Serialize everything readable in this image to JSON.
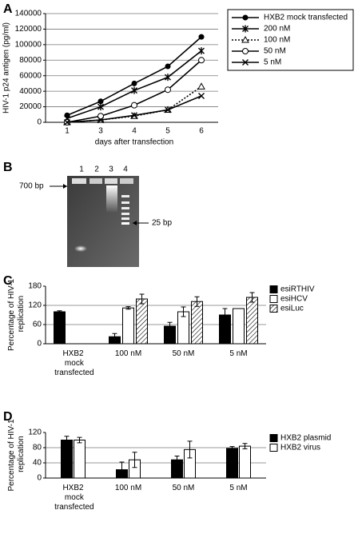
{
  "chart_data": [
    {
      "type": "line",
      "panel": "A",
      "ylabel": "HIV-1 p24 antigen (pg/ml)",
      "xlabel": "days after transfection",
      "categories": [
        "1",
        "3",
        "4",
        "5",
        "6"
      ],
      "ylim": [
        0,
        140000
      ],
      "yticks": [
        0,
        20000,
        40000,
        60000,
        80000,
        100000,
        120000,
        140000
      ],
      "grid": true,
      "series": [
        {
          "name": "HXB2 mock transfected",
          "color": "#000000",
          "marker": "filled-circle",
          "dashed": false,
          "values": [
            9000,
            27000,
            50000,
            72000,
            110000
          ]
        },
        {
          "name": "200 nM",
          "color": "#000000",
          "marker": "asterisk",
          "dashed": false,
          "values": [
            5000,
            20000,
            41000,
            58000,
            92000
          ]
        },
        {
          "name": "100 nM",
          "color": "#000000",
          "marker": "triangle",
          "dashed": true,
          "values": [
            0,
            3000,
            8000,
            16000,
            46000
          ]
        },
        {
          "name": "50 nM",
          "color": "#000000",
          "marker": "open-circle",
          "dashed": false,
          "values": [
            0,
            8000,
            22000,
            42000,
            80000
          ]
        },
        {
          "name": "5  nM",
          "color": "#000000",
          "marker": "x",
          "dashed": false,
          "values": [
            0,
            3000,
            9000,
            16000,
            34000
          ]
        }
      ]
    },
    {
      "type": "bar",
      "panel": "C",
      "ylabel": "Percentage of HIV-1 replication",
      "categories": [
        "HXB2 mock transfected",
        "100 nM",
        "50 nM",
        "5 nM"
      ],
      "ylim": [
        0,
        180
      ],
      "yticks": [
        0,
        60,
        120,
        180
      ],
      "grid": true,
      "series": [
        {
          "name": "esiRTHIV",
          "color": "#000000",
          "hatched": false,
          "values": [
            100,
            22,
            55,
            90
          ],
          "errors": [
            3,
            10,
            12,
            20
          ]
        },
        {
          "name": "esiHCV",
          "color": "#ffffff",
          "hatched": false,
          "values": [
            null,
            112,
            100,
            110
          ],
          "errors": [
            null,
            4,
            15,
            null
          ]
        },
        {
          "name": "esiLuc",
          "color": "#ffffff",
          "hatched": true,
          "values": [
            null,
            140,
            132,
            145
          ],
          "errors": [
            null,
            15,
            15,
            15
          ]
        }
      ]
    },
    {
      "type": "bar",
      "panel": "D",
      "ylabel": "Percentage of HIV-1 replication",
      "categories": [
        "HXB2 mock transfected",
        "100 nM",
        "50 nM",
        "5 nM"
      ],
      "ylim": [
        0,
        120
      ],
      "yticks": [
        0,
        40,
        80,
        120
      ],
      "grid": true,
      "series": [
        {
          "name": "HXB2 plasmid",
          "color": "#000000",
          "hatched": false,
          "values": [
            100,
            22,
            48,
            78
          ],
          "errors": [
            10,
            20,
            10,
            5
          ]
        },
        {
          "name": "HXB2 virus",
          "color": "#ffffff",
          "hatched": false,
          "values": [
            100,
            48,
            75,
            84
          ],
          "errors": [
            7,
            20,
            22,
            7
          ]
        }
      ]
    }
  ],
  "gel": {
    "panel": "B",
    "lanes": [
      "1",
      "2",
      "3",
      "4"
    ],
    "upper_marker": "700 bp",
    "lower_marker": "25 bp"
  }
}
